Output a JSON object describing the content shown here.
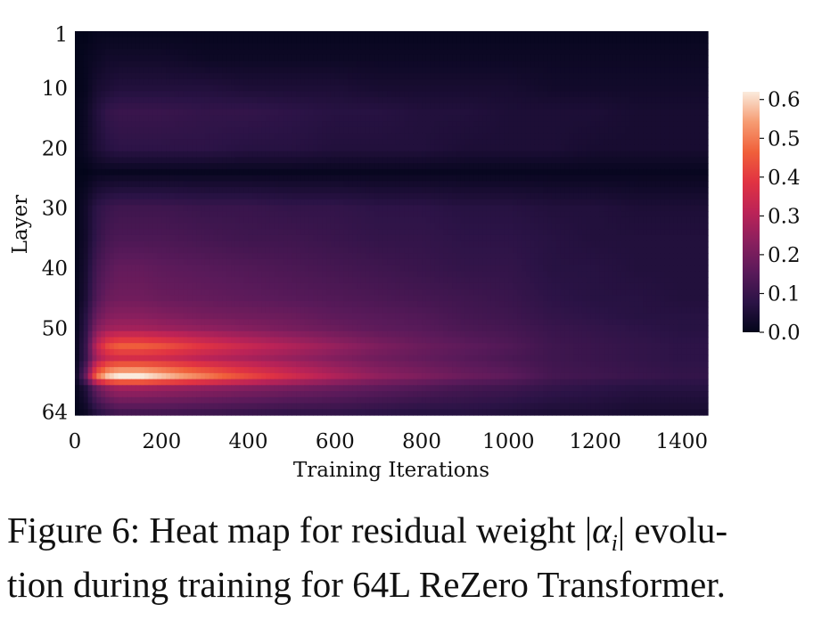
{
  "chart_data": {
    "type": "heatmap",
    "title": "",
    "xlabel": "Training Iterations",
    "ylabel": "Layer",
    "xlim": [
      0,
      1460
    ],
    "ylim": [
      1,
      64
    ],
    "x_ticks": [
      "0",
      "200",
      "400",
      "600",
      "800",
      "1000",
      "1200",
      "1400"
    ],
    "y_ticks": [
      "1",
      "10",
      "20",
      "30",
      "40",
      "50",
      "64"
    ],
    "colorbar": {
      "min": 0.0,
      "max": 0.62,
      "ticks": [
        "0.0",
        "0.1",
        "0.2",
        "0.3",
        "0.4",
        "0.5",
        "0.6"
      ],
      "colormap": "rocket",
      "colors": [
        "#03051a",
        "#2b1346",
        "#5a1a5a",
        "#8a1f5e",
        "#bc2357",
        "#e13342",
        "#f0603a",
        "#f69c73",
        "#faebdd"
      ]
    },
    "iterations": [
      0,
      25,
      50,
      75,
      100,
      150,
      200,
      300,
      400,
      500,
      600,
      700,
      800,
      900,
      1000,
      1100,
      1200,
      1300,
      1400,
      1460
    ],
    "layers": [
      1,
      5,
      10,
      14,
      20,
      24,
      30,
      35,
      40,
      45,
      48,
      50,
      53,
      55,
      58,
      60,
      64
    ],
    "values": [
      [
        0.0,
        0.0,
        0.01,
        0.01,
        0.01,
        0.01,
        0.01,
        0.01,
        0.01,
        0.01,
        0.01,
        0.01,
        0.01,
        0.01,
        0.01,
        0.01,
        0.01,
        0.01,
        0.01,
        0.01
      ],
      [
        0.0,
        0.01,
        0.02,
        0.03,
        0.03,
        0.03,
        0.03,
        0.02,
        0.02,
        0.02,
        0.02,
        0.02,
        0.02,
        0.02,
        0.02,
        0.02,
        0.02,
        0.02,
        0.02,
        0.02
      ],
      [
        0.0,
        0.01,
        0.04,
        0.05,
        0.06,
        0.06,
        0.06,
        0.06,
        0.05,
        0.05,
        0.05,
        0.04,
        0.04,
        0.04,
        0.04,
        0.03,
        0.03,
        0.03,
        0.03,
        0.03
      ],
      [
        0.0,
        0.02,
        0.06,
        0.09,
        0.1,
        0.1,
        0.1,
        0.09,
        0.09,
        0.08,
        0.07,
        0.07,
        0.06,
        0.06,
        0.05,
        0.05,
        0.05,
        0.04,
        0.04,
        0.04
      ],
      [
        0.0,
        0.02,
        0.05,
        0.07,
        0.08,
        0.08,
        0.08,
        0.08,
        0.07,
        0.07,
        0.06,
        0.06,
        0.06,
        0.05,
        0.05,
        0.05,
        0.04,
        0.04,
        0.04,
        0.04
      ],
      [
        0.0,
        0.0,
        0.01,
        0.01,
        0.01,
        0.01,
        0.01,
        0.01,
        0.01,
        0.01,
        0.01,
        0.01,
        0.01,
        0.01,
        0.01,
        0.01,
        0.01,
        0.01,
        0.01,
        0.01
      ],
      [
        0.0,
        0.03,
        0.08,
        0.1,
        0.11,
        0.11,
        0.11,
        0.1,
        0.1,
        0.09,
        0.09,
        0.08,
        0.08,
        0.07,
        0.07,
        0.06,
        0.06,
        0.05,
        0.05,
        0.05
      ],
      [
        0.0,
        0.03,
        0.09,
        0.12,
        0.13,
        0.13,
        0.13,
        0.12,
        0.11,
        0.11,
        0.1,
        0.09,
        0.09,
        0.08,
        0.08,
        0.07,
        0.06,
        0.06,
        0.06,
        0.06
      ],
      [
        0.0,
        0.04,
        0.12,
        0.15,
        0.17,
        0.17,
        0.16,
        0.15,
        0.14,
        0.13,
        0.12,
        0.11,
        0.1,
        0.09,
        0.09,
        0.07,
        0.07,
        0.06,
        0.06,
        0.06
      ],
      [
        0.0,
        0.05,
        0.14,
        0.18,
        0.19,
        0.19,
        0.18,
        0.17,
        0.16,
        0.15,
        0.14,
        0.13,
        0.12,
        0.11,
        0.1,
        0.08,
        0.07,
        0.07,
        0.06,
        0.06
      ],
      [
        0.0,
        0.07,
        0.18,
        0.22,
        0.23,
        0.23,
        0.22,
        0.2,
        0.19,
        0.18,
        0.16,
        0.15,
        0.14,
        0.12,
        0.11,
        0.09,
        0.08,
        0.07,
        0.07,
        0.07
      ],
      [
        0.0,
        0.08,
        0.22,
        0.26,
        0.27,
        0.27,
        0.26,
        0.24,
        0.22,
        0.2,
        0.18,
        0.16,
        0.15,
        0.13,
        0.12,
        0.1,
        0.09,
        0.08,
        0.07,
        0.07
      ],
      [
        0.0,
        0.1,
        0.32,
        0.42,
        0.46,
        0.46,
        0.44,
        0.38,
        0.33,
        0.29,
        0.25,
        0.21,
        0.18,
        0.16,
        0.14,
        0.11,
        0.1,
        0.09,
        0.08,
        0.08
      ],
      [
        0.0,
        0.1,
        0.28,
        0.34,
        0.36,
        0.36,
        0.35,
        0.31,
        0.28,
        0.25,
        0.22,
        0.19,
        0.17,
        0.15,
        0.13,
        0.11,
        0.1,
        0.09,
        0.08,
        0.08
      ],
      [
        0.0,
        0.18,
        0.48,
        0.58,
        0.62,
        0.62,
        0.58,
        0.5,
        0.42,
        0.35,
        0.29,
        0.24,
        0.21,
        0.18,
        0.16,
        0.12,
        0.11,
        0.1,
        0.09,
        0.09
      ],
      [
        0.0,
        0.06,
        0.18,
        0.24,
        0.27,
        0.27,
        0.26,
        0.24,
        0.22,
        0.2,
        0.18,
        0.16,
        0.14,
        0.12,
        0.11,
        0.09,
        0.08,
        0.07,
        0.07,
        0.07
      ],
      [
        0.0,
        0.02,
        0.07,
        0.1,
        0.12,
        0.12,
        0.12,
        0.11,
        0.1,
        0.09,
        0.09,
        0.08,
        0.07,
        0.07,
        0.06,
        0.05,
        0.05,
        0.04,
        0.04,
        0.04
      ]
    ]
  },
  "caption": {
    "line1_prefix": "Figure 6: Heat map for residual weight ",
    "math_open": "|",
    "math_symbol": "α",
    "math_sub": "i",
    "math_close": "|",
    "line1_suffix": " evolu-",
    "line2": "tion during training for 64L ReZero Transformer."
  }
}
